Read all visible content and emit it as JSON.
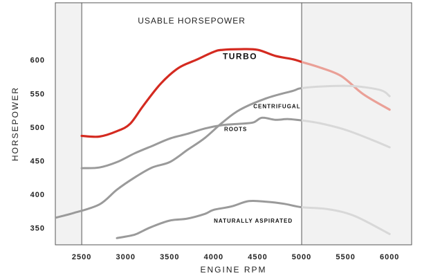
{
  "chart_data": {
    "type": "line",
    "title": "",
    "band_label": "USABLE HORSEPOWER",
    "xlabel": "ENGINE RPM",
    "ylabel": "HORSEPOWER",
    "xlim": [
      2200,
      6250
    ],
    "ylim": [
      325,
      685
    ],
    "x_ticks": [
      2500,
      3000,
      3500,
      4000,
      4500,
      5000,
      5500,
      6000
    ],
    "y_ticks": [
      350,
      400,
      450,
      500,
      550,
      600
    ],
    "usable_band": [
      2500,
      5000
    ],
    "grid": false,
    "colors": {
      "turbo": "#d42a20",
      "other": "#9a9a9a",
      "faded_other": "#d8d8d8",
      "faded_turbo": "#eaa097",
      "outside_band": "#f2f2f2",
      "frame": "#555555"
    },
    "series": [
      {
        "name": "TURBO",
        "label_at": [
          4300,
          601
        ],
        "x": [
          2500,
          2700,
          2900,
          3050,
          3200,
          3400,
          3600,
          3800,
          4000,
          4100,
          4300,
          4500,
          4700,
          4900,
          5000,
          5200,
          5450,
          5700,
          6000
        ],
        "y": [
          487,
          486,
          494,
          505,
          532,
          565,
          588,
          600,
          612,
          615,
          616,
          615,
          606,
          601,
          597,
          589,
          576,
          549,
          526
        ]
      },
      {
        "name": "CENTRIFUGAL",
        "label_at": [
          4720,
          528
        ],
        "x": [
          2100,
          2400,
          2700,
          2900,
          3100,
          3300,
          3500,
          3700,
          3900,
          4100,
          4300,
          4600,
          4900,
          5000,
          5300,
          5600,
          5900,
          6000
        ],
        "y": [
          362,
          372,
          385,
          407,
          425,
          440,
          448,
          466,
          484,
          507,
          526,
          543,
          554,
          558,
          561,
          561,
          555,
          546
        ]
      },
      {
        "name": "ROOTS",
        "label_at": [
          4250,
          494
        ],
        "x": [
          2500,
          2700,
          2900,
          3100,
          3300,
          3500,
          3700,
          3900,
          4100,
          4300,
          4450,
          4550,
          4700,
          4850,
          5000,
          5200,
          5500,
          5800,
          6000
        ],
        "y": [
          439,
          440,
          448,
          461,
          472,
          483,
          490,
          498,
          503,
          505,
          507,
          514,
          511,
          512,
          510,
          506,
          496,
          481,
          470
        ]
      },
      {
        "name": "NATURALLY ASPIRATED",
        "label_at": [
          4450,
          358
        ],
        "x": [
          2900,
          3100,
          3200,
          3300,
          3500,
          3700,
          3900,
          4000,
          4200,
          4400,
          4600,
          4800,
          5000,
          5300,
          5600,
          6000
        ],
        "y": [
          335,
          340,
          346,
          352,
          361,
          364,
          371,
          377,
          382,
          390,
          389,
          386,
          381,
          378,
          368,
          341
        ]
      }
    ]
  }
}
